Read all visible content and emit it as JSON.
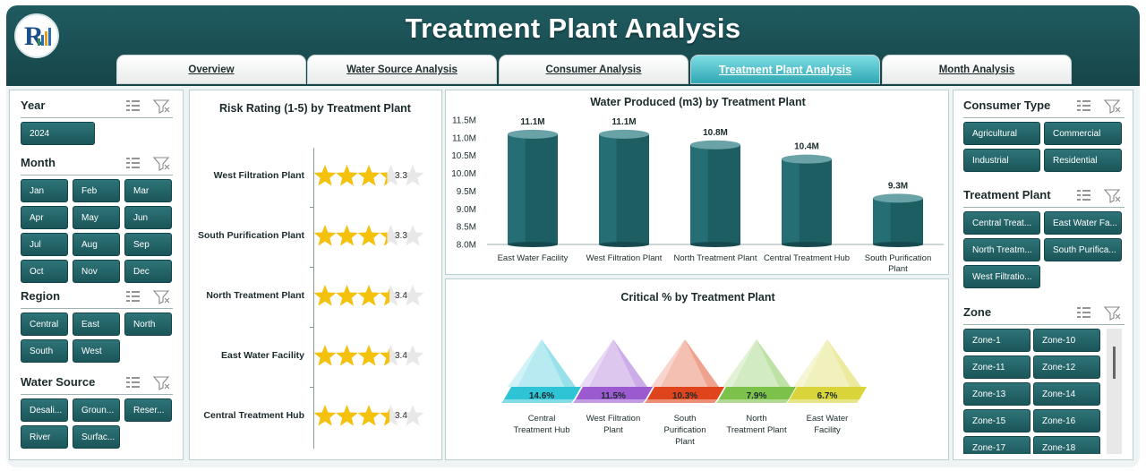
{
  "header": {
    "title": "Treatment Plant Analysis",
    "tabs": [
      {
        "label": "Overview",
        "active": false
      },
      {
        "label": "Water Source Analysis",
        "active": false
      },
      {
        "label": "Consumer Analysis",
        "active": false
      },
      {
        "label": "Treatment Plant Analysis",
        "active": true
      },
      {
        "label": "Month Analysis",
        "active": false
      }
    ]
  },
  "slicers": {
    "year": {
      "label": "Year",
      "items": [
        "2024"
      ]
    },
    "month": {
      "label": "Month",
      "items": [
        "Jan",
        "Feb",
        "Mar",
        "Apr",
        "May",
        "Jun",
        "Jul",
        "Aug",
        "Sep",
        "Oct",
        "Nov",
        "Dec"
      ]
    },
    "region": {
      "label": "Region",
      "items": [
        "Central",
        "East",
        "North",
        "South",
        "West"
      ]
    },
    "water_source": {
      "label": "Water Source",
      "items": [
        "Desali...",
        "Groun...",
        "Reser...",
        "River",
        "Surfac..."
      ]
    },
    "consumer_type": {
      "label": "Consumer Type",
      "items": [
        "Agricultural",
        "Commercial",
        "Industrial",
        "Residential"
      ]
    },
    "treatment_plant": {
      "label": "Treatment Plant",
      "items": [
        "Central Treat...",
        "East Water Fa...",
        "North Treatm...",
        "South Purifica...",
        "West Filtratio..."
      ]
    },
    "zone": {
      "label": "Zone",
      "items": [
        "Zone-1",
        "Zone-10",
        "Zone-11",
        "Zone-12",
        "Zone-13",
        "Zone-14",
        "Zone-15",
        "Zone-16",
        "Zone-17",
        "Zone-18"
      ]
    }
  },
  "colors": {
    "slicer_button": "#1f6064",
    "header": "#1a4f53",
    "bar": "#1d5e63",
    "star": "#f4c20d"
  },
  "chart_data": [
    {
      "type": "bar",
      "title": "Risk Rating (1-5) by Treatment Plant",
      "categories": [
        "West Filtration Plant",
        "South Purification Plant",
        "North Treatment Plant",
        "East Water Facility",
        "Central Treatment Hub"
      ],
      "values": [
        3.3,
        3.3,
        3.4,
        3.4,
        3.4
      ],
      "value_labels": [
        "3.3",
        "3.3",
        "3.4",
        "3.4",
        "3.4"
      ],
      "max": 5
    },
    {
      "type": "bar",
      "title": "Water Produced (m3) by Treatment Plant",
      "categories": [
        "East Water Facility",
        "West Filtration Plant",
        "North Treatment Plant",
        "Central Treatment Hub",
        "South Purification Plant"
      ],
      "values": [
        11.1,
        11.1,
        10.8,
        10.4,
        9.3
      ],
      "value_labels": [
        "11.1M",
        "11.1M",
        "10.8M",
        "10.4M",
        "9.3M"
      ],
      "ylim": [
        8.0,
        11.5
      ],
      "yticks": [
        "8.0M",
        "8.5M",
        "9.0M",
        "9.5M",
        "10.0M",
        "10.5M",
        "11.0M",
        "11.5M"
      ],
      "ytick_values": [
        8.0,
        8.5,
        9.0,
        9.5,
        10.0,
        10.5,
        11.0,
        11.5
      ]
    },
    {
      "type": "bar",
      "title": "Critical % by Treatment Plant",
      "categories": [
        "Central Treatment Hub",
        "West Filtration Plant",
        "South Purification Plant",
        "North Treatment Plant",
        "East Water Facility"
      ],
      "values": [
        14.6,
        11.5,
        10.3,
        7.9,
        6.7
      ],
      "value_labels": [
        "14.6%",
        "11.5%",
        "10.3%",
        "7.9%",
        "6.7%"
      ],
      "colors": [
        "#2ec4d6",
        "#9b5ad0",
        "#e0441c",
        "#7cc24a",
        "#d8d43a"
      ]
    }
  ]
}
